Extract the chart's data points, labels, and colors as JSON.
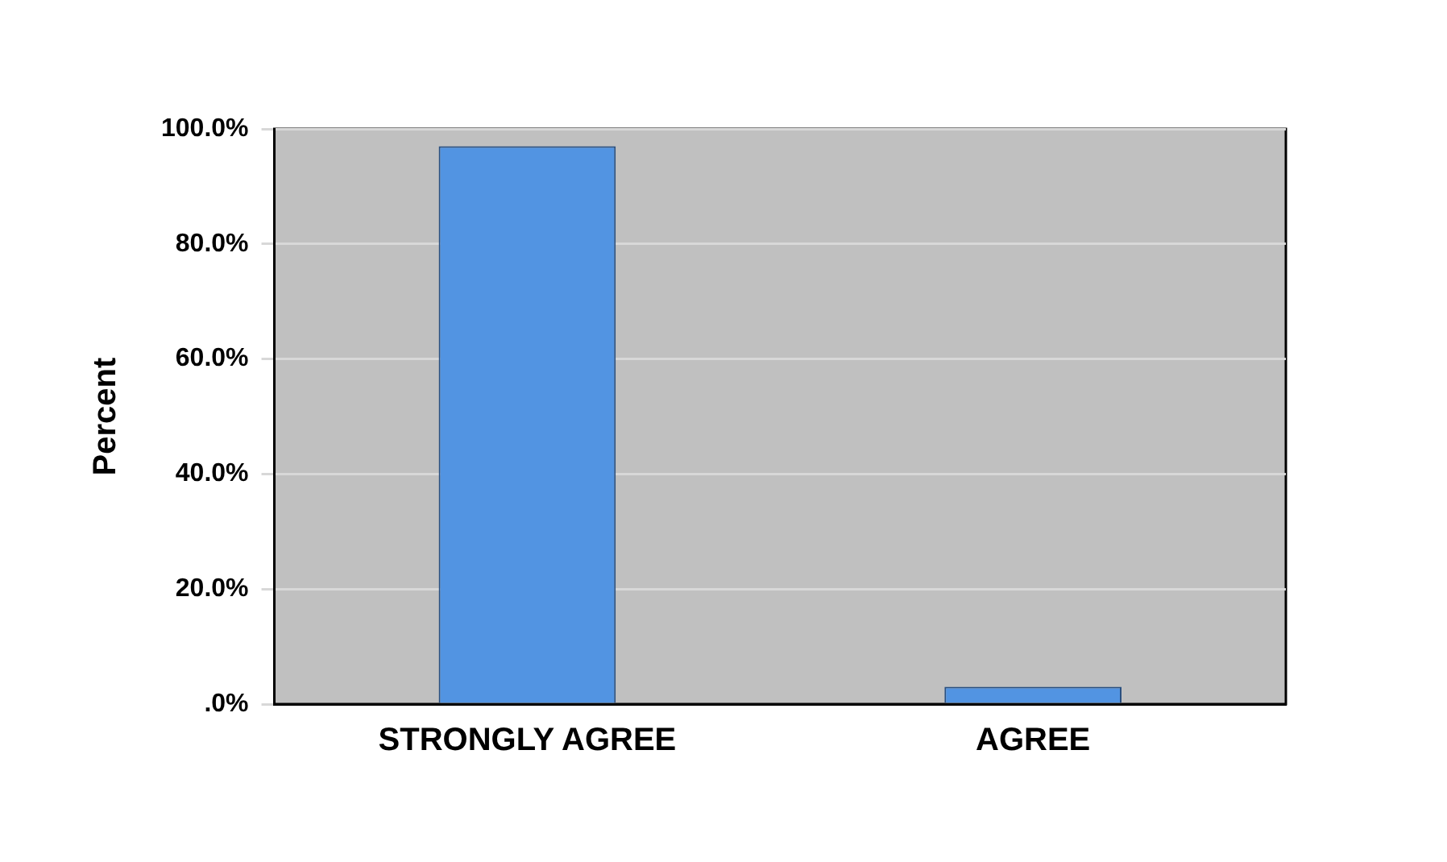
{
  "chart_data": {
    "type": "bar",
    "ylabel": "Percent",
    "categories": [
      "STRONGLY AGREE",
      "AGREE"
    ],
    "values": [
      97,
      3
    ],
    "color": "#5294e2",
    "ylim": [
      0,
      100
    ],
    "yticks": [
      {
        "value": 0,
        "label": ".0%"
      },
      {
        "value": 20,
        "label": "20.0%"
      },
      {
        "value": 40,
        "label": "40.0%"
      },
      {
        "value": 60,
        "label": "60.0%"
      },
      {
        "value": 80,
        "label": "80.0%"
      },
      {
        "value": 100,
        "label": "100.0%"
      }
    ],
    "grid": "y",
    "legend": false
  }
}
